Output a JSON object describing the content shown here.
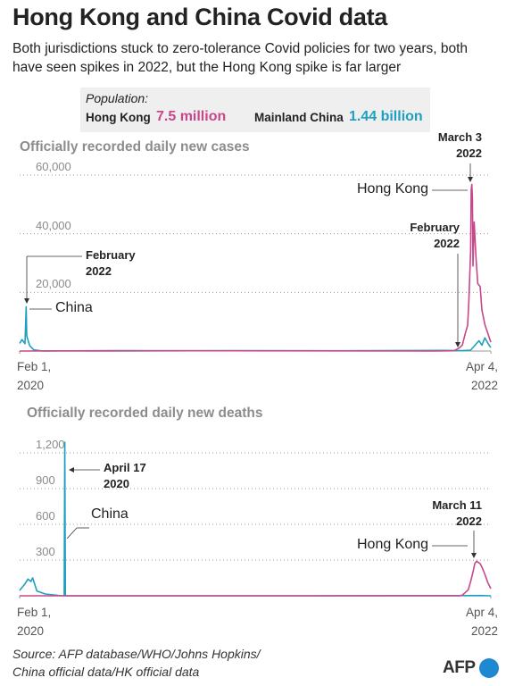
{
  "header": {
    "title": "Hong Kong and China Covid data",
    "subtitle": "Both jurisdictions stuck to zero-tolerance Covid policies for two years, both have seen spikes in 2022, but the Hong Kong spike is far larger"
  },
  "population": {
    "label": "Population:",
    "items": [
      {
        "name": "Hong Kong",
        "value": "7.5 million",
        "color": "#c8468a"
      },
      {
        "name": "Mainland China",
        "value": "1.44 billion",
        "color": "#1f9fbf"
      }
    ]
  },
  "chart_data": [
    {
      "type": "line",
      "title": "Officially recorded daily new cases",
      "xlim": [
        "2020-02-01",
        "2022-04-04"
      ],
      "xticks": [
        {
          "value": "2020-02-01",
          "label": "Feb 1, 2020"
        },
        {
          "value": "2022-04-04",
          "label": "Apr 4, 2022"
        }
      ],
      "ylim": [
        0,
        60000
      ],
      "yticks": [
        {
          "value": 20000,
          "label": "20,000"
        },
        {
          "value": 40000,
          "label": "40,000"
        },
        {
          "value": 60000,
          "label": "60,000"
        }
      ],
      "grid": true,
      "series": [
        {
          "name": "China",
          "color": "#1f9fbf",
          "x": [
            "2020-02-01",
            "2020-02-05",
            "2020-02-10",
            "2020-02-12",
            "2020-02-13",
            "2020-02-18",
            "2020-02-25",
            "2020-03-10",
            "2020-04-15",
            "2020-06-01",
            "2021-01-15",
            "2021-08-01",
            "2022-01-15",
            "2022-02-15",
            "2022-03-01",
            "2022-03-15",
            "2022-03-20",
            "2022-03-25",
            "2022-04-01",
            "2022-04-04"
          ],
          "values": [
            2600,
            3900,
            2500,
            15100,
            5100,
            1800,
            400,
            30,
            50,
            10,
            130,
            100,
            200,
            150,
            300,
            3500,
            2000,
            4500,
            2000,
            1200
          ]
        },
        {
          "name": "Hong Kong",
          "color": "#c8468a",
          "x": [
            "2020-02-01",
            "2020-07-30",
            "2021-01-01",
            "2022-01-01",
            "2022-02-01",
            "2022-02-10",
            "2022-02-15",
            "2022-02-20",
            "2022-02-24",
            "2022-02-26",
            "2022-03-01",
            "2022-03-02",
            "2022-03-03",
            "2022-03-04",
            "2022-03-05",
            "2022-03-07",
            "2022-03-10",
            "2022-03-13",
            "2022-03-17",
            "2022-03-20",
            "2022-03-25",
            "2022-03-30",
            "2022-04-04"
          ],
          "values": [
            0,
            150,
            80,
            0,
            100,
            1100,
            2000,
            6000,
            8800,
            17000,
            34000,
            55000,
            56800,
            52500,
            29000,
            44000,
            32000,
            23000,
            22000,
            14000,
            9000,
            6000,
            3000
          ]
        }
      ],
      "annotations": [
        "February 2022",
        "China",
        "Hong Kong",
        "March 3 2022",
        "February 2022"
      ]
    },
    {
      "type": "line",
      "title": "Officially recorded daily new deaths",
      "xlim": [
        "2020-02-01",
        "2022-04-04"
      ],
      "xticks": [
        {
          "value": "2020-02-01",
          "label": "Feb 1, 2020"
        },
        {
          "value": "2022-04-04",
          "label": "Apr 4, 2022"
        }
      ],
      "ylim": [
        0,
        1200
      ],
      "yticks": [
        300,
        600,
        900,
        {
          "value": 1200,
          "label": "1,200"
        }
      ],
      "grid": true,
      "series": [
        {
          "name": "China",
          "color": "#1f9fbf",
          "x": [
            "2020-02-01",
            "2020-02-10",
            "2020-02-15",
            "2020-02-20",
            "2020-02-23",
            "2020-03-01",
            "2020-03-15",
            "2020-04-10",
            "2020-04-16",
            "2020-04-17",
            "2020-04-18",
            "2021-06-01",
            "2022-03-19",
            "2022-04-04"
          ],
          "values": [
            45,
            100,
            140,
            120,
            150,
            40,
            15,
            1,
            0,
            1290,
            0,
            0,
            2,
            0
          ]
        },
        {
          "name": "Hong Kong",
          "color": "#c8468a",
          "x": [
            "2020-02-01",
            "2022-02-10",
            "2022-02-15",
            "2022-02-25",
            "2022-03-01",
            "2022-03-05",
            "2022-03-08",
            "2022-03-11",
            "2022-03-14",
            "2022-03-17",
            "2022-03-21",
            "2022-03-25",
            "2022-03-30",
            "2022-04-04"
          ],
          "values": [
            0,
            0,
            5,
            50,
            120,
            200,
            270,
            290,
            280,
            270,
            230,
            180,
            110,
            60
          ]
        }
      ],
      "annotations": [
        "April 17 2020",
        "China",
        "March 11 2022",
        "Hong Kong"
      ]
    }
  ],
  "source": "Source: AFP database/WHO/Johns Hopkins/ China official data/HK official data",
  "logo": "AFP"
}
